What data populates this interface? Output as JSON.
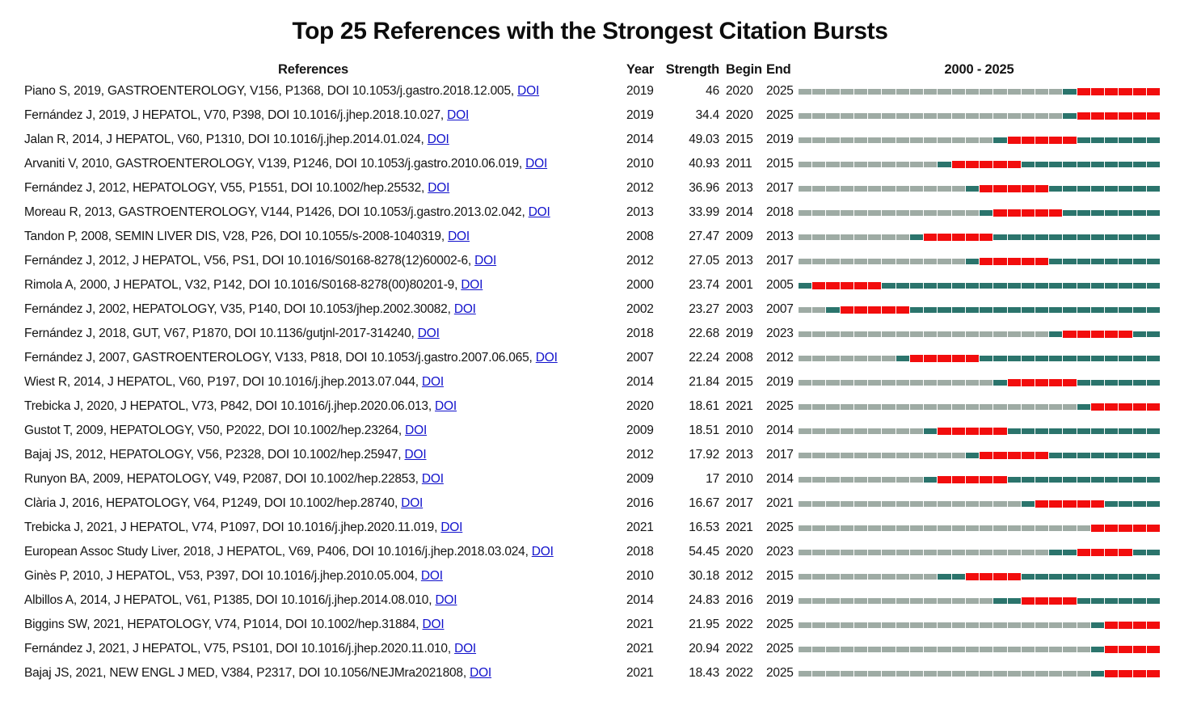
{
  "title": "Top 25 References with the Strongest Citation Bursts",
  "header": {
    "references": "References",
    "year": "Year",
    "strength": "Strength",
    "begin": "Begin",
    "end": "End",
    "timeline_label": "2000 - 2025"
  },
  "doi_link_label": "DOI",
  "colors": {
    "text": "#141414",
    "link": "#1212cc",
    "pre": "#9EABA4",
    "post": "#2B746C",
    "burst": "#F20D0D"
  },
  "timeline": {
    "start": 2000,
    "end": 2025
  },
  "chart_data": {
    "type": "gantt",
    "title": "Top 25 References with the Strongest Citation Bursts",
    "xlabel": "2000 - 2025",
    "x_range": [
      2000,
      2025
    ],
    "legend": {
      "pre_publication_color": "#9EABA4",
      "non_burst_color": "#2B746C",
      "burst_color": "#F20D0D"
    },
    "rows": [
      {
        "ref": "Piano S, 2019, GASTROENTEROLOGY, V156, P1368, DOI 10.1053/j.gastro.2018.12.005,",
        "year": 2019,
        "strength": "46",
        "begin": 2020,
        "end": 2025
      },
      {
        "ref": "Fernández J, 2019, J HEPATOL, V70, P398, DOI 10.1016/j.jhep.2018.10.027,",
        "year": 2019,
        "strength": "34.4",
        "begin": 2020,
        "end": 2025
      },
      {
        "ref": "Jalan R, 2014, J HEPATOL, V60, P1310, DOI 10.1016/j.jhep.2014.01.024,",
        "year": 2014,
        "strength": "49.03",
        "begin": 2015,
        "end": 2019
      },
      {
        "ref": "Arvaniti V, 2010, GASTROENTEROLOGY, V139, P1246, DOI 10.1053/j.gastro.2010.06.019,",
        "year": 2010,
        "strength": "40.93",
        "begin": 2011,
        "end": 2015
      },
      {
        "ref": "Fernández J, 2012, HEPATOLOGY, V55, P1551, DOI 10.1002/hep.25532,",
        "year": 2012,
        "strength": "36.96",
        "begin": 2013,
        "end": 2017
      },
      {
        "ref": "Moreau R, 2013, GASTROENTEROLOGY, V144, P1426, DOI 10.1053/j.gastro.2013.02.042,",
        "year": 2013,
        "strength": "33.99",
        "begin": 2014,
        "end": 2018
      },
      {
        "ref": "Tandon P, 2008, SEMIN LIVER DIS, V28, P26, DOI 10.1055/s-2008-1040319,",
        "year": 2008,
        "strength": "27.47",
        "begin": 2009,
        "end": 2013
      },
      {
        "ref": "Fernández J, 2012, J HEPATOL, V56, PS1, DOI 10.1016/S0168-8278(12)60002-6,",
        "year": 2012,
        "strength": "27.05",
        "begin": 2013,
        "end": 2017
      },
      {
        "ref": "Rimola A, 2000, J HEPATOL, V32, P142, DOI 10.1016/S0168-8278(00)80201-9,",
        "year": 2000,
        "strength": "23.74",
        "begin": 2001,
        "end": 2005
      },
      {
        "ref": "Fernández J, 2002, HEPATOLOGY, V35, P140, DOI 10.1053/jhep.2002.30082,",
        "year": 2002,
        "strength": "23.27",
        "begin": 2003,
        "end": 2007
      },
      {
        "ref": "Fernández J, 2018, GUT, V67, P1870, DOI 10.1136/gutjnl-2017-314240,",
        "year": 2018,
        "strength": "22.68",
        "begin": 2019,
        "end": 2023
      },
      {
        "ref": "Fernández J, 2007, GASTROENTEROLOGY, V133, P818, DOI 10.1053/j.gastro.2007.06.065,",
        "year": 2007,
        "strength": "22.24",
        "begin": 2008,
        "end": 2012
      },
      {
        "ref": "Wiest R, 2014, J HEPATOL, V60, P197, DOI 10.1016/j.jhep.2013.07.044,",
        "year": 2014,
        "strength": "21.84",
        "begin": 2015,
        "end": 2019
      },
      {
        "ref": "Trebicka J, 2020, J HEPATOL, V73, P842, DOI 10.1016/j.jhep.2020.06.013,",
        "year": 2020,
        "strength": "18.61",
        "begin": 2021,
        "end": 2025
      },
      {
        "ref": "Gustot T, 2009, HEPATOLOGY, V50, P2022, DOI 10.1002/hep.23264,",
        "year": 2009,
        "strength": "18.51",
        "begin": 2010,
        "end": 2014
      },
      {
        "ref": "Bajaj JS, 2012, HEPATOLOGY, V56, P2328, DOI 10.1002/hep.25947,",
        "year": 2012,
        "strength": "17.92",
        "begin": 2013,
        "end": 2017
      },
      {
        "ref": "Runyon BA, 2009, HEPATOLOGY, V49, P2087, DOI 10.1002/hep.22853,",
        "year": 2009,
        "strength": "17",
        "begin": 2010,
        "end": 2014
      },
      {
        "ref": "Clària J, 2016, HEPATOLOGY, V64, P1249, DOI 10.1002/hep.28740,",
        "year": 2016,
        "strength": "16.67",
        "begin": 2017,
        "end": 2021
      },
      {
        "ref": "Trebicka J, 2021, J HEPATOL, V74, P1097, DOI 10.1016/j.jhep.2020.11.019,",
        "year": 2021,
        "strength": "16.53",
        "begin": 2021,
        "end": 2025
      },
      {
        "ref": "European Assoc Study Liver, 2018, J HEPATOL, V69, P406, DOI 10.1016/j.jhep.2018.03.024,",
        "year": 2018,
        "strength": "54.45",
        "begin": 2020,
        "end": 2023
      },
      {
        "ref": "Ginès P, 2010, J HEPATOL, V53, P397, DOI 10.1016/j.jhep.2010.05.004,",
        "year": 2010,
        "strength": "30.18",
        "begin": 2012,
        "end": 2015
      },
      {
        "ref": "Albillos A, 2014, J HEPATOL, V61, P1385, DOI 10.1016/j.jhep.2014.08.010,",
        "year": 2014,
        "strength": "24.83",
        "begin": 2016,
        "end": 2019
      },
      {
        "ref": "Biggins SW, 2021, HEPATOLOGY, V74, P1014, DOI 10.1002/hep.31884,",
        "year": 2021,
        "strength": "21.95",
        "begin": 2022,
        "end": 2025
      },
      {
        "ref": "Fernández J, 2021, J HEPATOL, V75, PS101, DOI 10.1016/j.jhep.2020.11.010,",
        "year": 2021,
        "strength": "20.94",
        "begin": 2022,
        "end": 2025
      },
      {
        "ref": "Bajaj JS, 2021, NEW ENGL J MED, V384, P2317, DOI 10.1056/NEJMra2021808,",
        "year": 2021,
        "strength": "18.43",
        "begin": 2022,
        "end": 2025
      }
    ]
  }
}
